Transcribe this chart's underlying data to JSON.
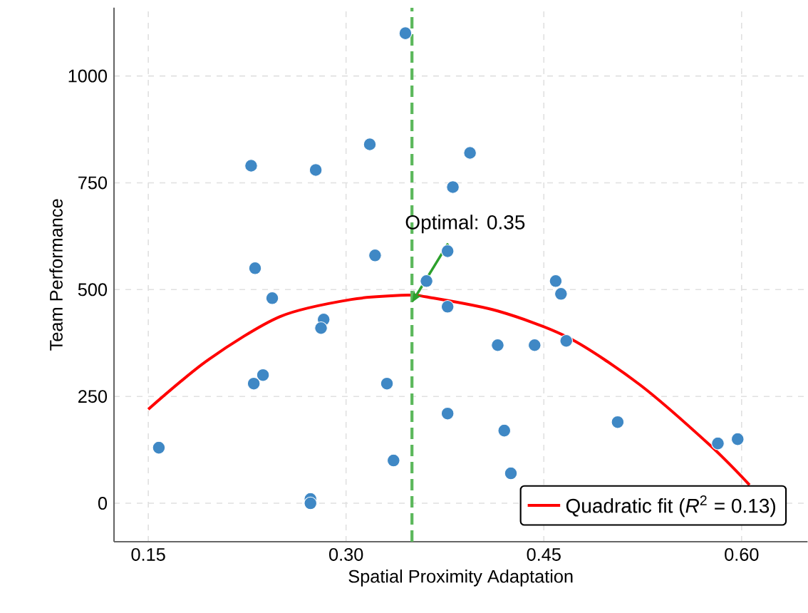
{
  "chart_data": {
    "type": "scatter",
    "xlabel": "Spatial Proximity Adaptation",
    "ylabel": "Team Performance",
    "xlim": [
      0.124,
      0.65
    ],
    "ylim": [
      -90,
      1160
    ],
    "xticks": [
      {
        "value": 0.15,
        "label": "0.15"
      },
      {
        "value": 0.3,
        "label": "0.30"
      },
      {
        "value": 0.45,
        "label": "0.45"
      },
      {
        "value": 0.6,
        "label": "0.60"
      }
    ],
    "yticks": [
      0,
      250,
      500,
      750,
      1000
    ],
    "grid": true,
    "legend": "bottom right",
    "marker": "circle",
    "series": [
      {
        "color": "#3f88c5",
        "x": [
          0.345,
          0.228,
          0.277,
          0.318,
          0.394,
          0.381,
          0.231,
          0.322,
          0.377,
          0.244,
          0.361,
          0.377,
          0.459,
          0.463,
          0.467,
          0.415,
          0.443,
          0.283,
          0.281,
          0.237,
          0.23,
          0.331,
          0.377,
          0.42,
          0.506,
          0.158,
          0.336,
          0.425,
          0.582,
          0.597,
          0.273,
          0.273
        ],
        "values": [
          1100,
          790,
          780,
          840,
          820,
          740,
          550,
          580,
          590,
          480,
          520,
          460,
          520,
          490,
          380,
          370,
          370,
          430,
          410,
          300,
          280,
          280,
          210,
          170,
          190,
          130,
          100,
          70,
          140,
          150,
          10,
          0
        ]
      },
      {
        "type": "line",
        "name": "Quadratic fit (*R*$^{2}$ = 0.13)",
        "color": "#ff0000",
        "marker": "none",
        "x": [
          0.15,
          0.196,
          0.25,
          0.304,
          0.347,
          0.361,
          0.415,
          0.469,
          0.523,
          0.577,
          0.606
        ],
        "values": [
          220,
          337,
          437,
          477,
          487,
          483,
          450,
          387,
          277,
          133,
          43
        ]
      }
    ],
    "ref_lines": [
      {
        "axis": "x",
        "value": 0.35,
        "color": "#5cb85c",
        "line_style": "dashed"
      }
    ],
    "annotations": [
      {
        "text": "Optimal: 0.35",
        "x": 0.35,
        "y": 470
      }
    ]
  }
}
